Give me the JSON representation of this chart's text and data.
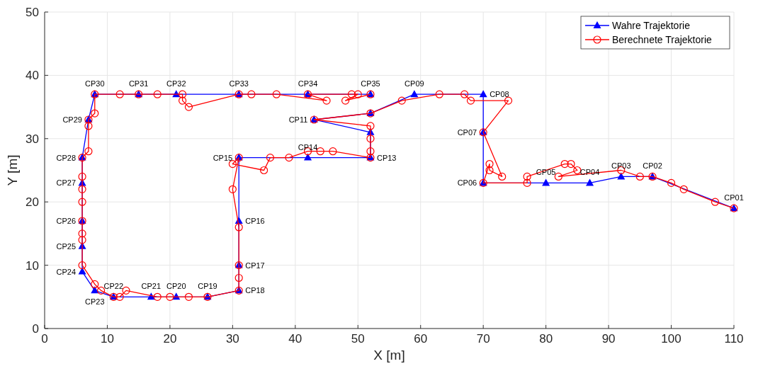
{
  "chart_data": {
    "type": "line",
    "xlabel": "X [m]",
    "ylabel": "Y [m]",
    "xlim": [
      0,
      110
    ],
    "ylim": [
      0,
      50
    ],
    "xticks": [
      0,
      10,
      20,
      30,
      40,
      50,
      60,
      70,
      80,
      90,
      100,
      110
    ],
    "yticks": [
      0,
      10,
      20,
      30,
      40,
      50
    ],
    "grid": true,
    "legend": "top right",
    "line_style": "solid",
    "series": [
      {
        "name": "Wahre Trajektorie",
        "color": "#0000ff",
        "marker": "triangle",
        "x": [
          110,
          97,
          92,
          87,
          80,
          70,
          70,
          70,
          59,
          52,
          43,
          52,
          52,
          42,
          31,
          31,
          31,
          31,
          26,
          21,
          17,
          11,
          8,
          6,
          6,
          6,
          6,
          6,
          7,
          8,
          15,
          21,
          31,
          42,
          52
        ],
        "values": [
          19,
          24,
          24,
          23,
          23,
          23,
          31,
          37,
          37,
          34,
          33,
          31,
          27,
          27,
          27,
          17,
          10,
          6,
          5,
          5,
          5,
          5,
          6,
          9,
          13,
          17,
          23,
          27,
          33,
          37,
          37,
          37,
          37,
          37,
          37
        ]
      },
      {
        "name": "Berechnete Trajektorie",
        "color": "#ff0000",
        "marker": "circle",
        "x": [
          110,
          107,
          102,
          100,
          97,
          95,
          92,
          82,
          85,
          84,
          83,
          77,
          77,
          70,
          71,
          71,
          73,
          70,
          74,
          68,
          67,
          63,
          57,
          52,
          43,
          52,
          52,
          52,
          52,
          46,
          44,
          42,
          39,
          36,
          35,
          30,
          31,
          30,
          31,
          31,
          31,
          31,
          26,
          23,
          20,
          18,
          13,
          12,
          11,
          9,
          8,
          6,
          6,
          6,
          6,
          6,
          6,
          6,
          6,
          7,
          7,
          7,
          8,
          8,
          12,
          15,
          18,
          22,
          22,
          23,
          31,
          33,
          37,
          45,
          42,
          49,
          50,
          48,
          52
        ],
        "values": [
          19,
          20,
          22,
          23,
          24,
          24,
          25,
          24,
          25,
          26,
          26,
          24,
          23,
          23,
          26,
          25,
          24,
          31,
          36,
          36,
          37,
          37,
          36,
          34,
          33,
          32,
          30,
          28,
          27,
          28,
          28,
          28,
          27,
          27,
          25,
          26,
          27,
          22,
          16,
          10,
          8,
          6,
          5,
          5,
          5,
          5,
          6,
          5,
          5,
          6,
          7,
          10,
          14,
          15,
          17,
          20,
          22,
          24,
          27,
          28,
          32,
          33,
          34,
          37,
          37,
          37,
          37,
          37,
          36,
          35,
          37,
          37,
          37,
          36,
          37,
          37,
          37,
          36,
          37
        ]
      }
    ],
    "annotations": [
      {
        "text": "CP01",
        "x": 110,
        "y": 19
      },
      {
        "text": "CP02",
        "x": 97,
        "y": 24
      },
      {
        "text": "CP03",
        "x": 92,
        "y": 24
      },
      {
        "text": "CP04",
        "x": 87,
        "y": 23
      },
      {
        "text": "CP05",
        "x": 80,
        "y": 23
      },
      {
        "text": "CP06",
        "x": 70,
        "y": 23
      },
      {
        "text": "CP07",
        "x": 70,
        "y": 31
      },
      {
        "text": "CP08",
        "x": 70,
        "y": 37
      },
      {
        "text": "CP09",
        "x": 59,
        "y": 37
      },
      {
        "text": "CP11",
        "x": 43,
        "y": 33
      },
      {
        "text": "CP13",
        "x": 52,
        "y": 27
      },
      {
        "text": "CP14",
        "x": 42,
        "y": 27
      },
      {
        "text": "CP15",
        "x": 31,
        "y": 27
      },
      {
        "text": "CP16",
        "x": 31,
        "y": 17
      },
      {
        "text": "CP17",
        "x": 31,
        "y": 10
      },
      {
        "text": "CP18",
        "x": 31,
        "y": 6
      },
      {
        "text": "CP19",
        "x": 26,
        "y": 5
      },
      {
        "text": "CP20",
        "x": 21,
        "y": 5
      },
      {
        "text": "CP21",
        "x": 17,
        "y": 5
      },
      {
        "text": "CP22",
        "x": 11,
        "y": 5
      },
      {
        "text": "CP23",
        "x": 8,
        "y": 6
      },
      {
        "text": "CP24",
        "x": 6,
        "y": 9
      },
      {
        "text": "CP25",
        "x": 6,
        "y": 13
      },
      {
        "text": "CP26",
        "x": 6,
        "y": 17
      },
      {
        "text": "CP27",
        "x": 6,
        "y": 23
      },
      {
        "text": "CP28",
        "x": 6,
        "y": 27
      },
      {
        "text": "CP29",
        "x": 7,
        "y": 33
      },
      {
        "text": "CP30",
        "x": 8,
        "y": 37
      },
      {
        "text": "CP31",
        "x": 15,
        "y": 37
      },
      {
        "text": "CP32",
        "x": 21,
        "y": 37
      },
      {
        "text": "CP33",
        "x": 31,
        "y": 37
      },
      {
        "text": "CP34",
        "x": 42,
        "y": 37
      },
      {
        "text": "CP35",
        "x": 52,
        "y": 37
      }
    ]
  }
}
